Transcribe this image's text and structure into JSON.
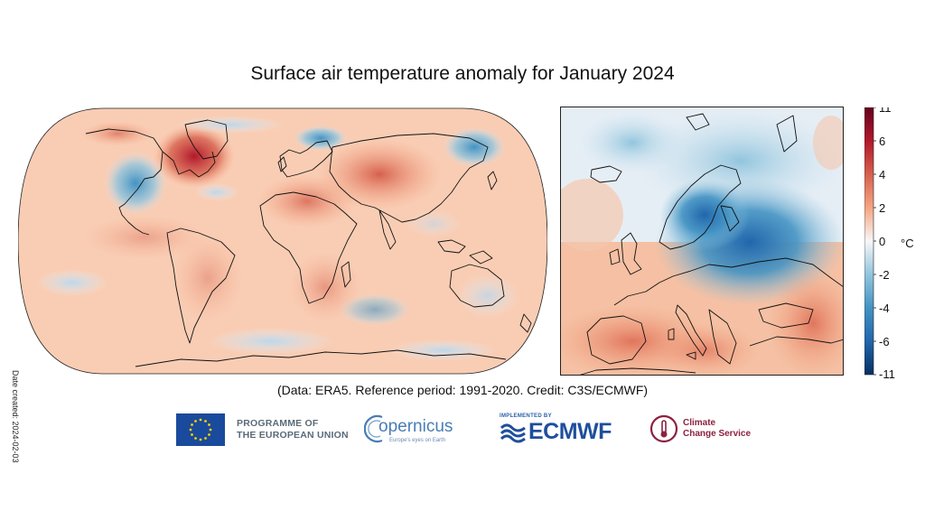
{
  "title": "Surface air temperature anomaly for January 2024",
  "date_created": "Date created: 2024-02-03",
  "credit": "(Data: ERA5.  Reference period: 1991-2020.  Credit: C3S/ECMWF)",
  "colorbar": {
    "unit": "°C",
    "ticks": [
      "11",
      "6",
      "4",
      "2",
      "0",
      "-2",
      "-4",
      "-6",
      "-11"
    ],
    "colors": [
      "#08306b",
      "#2166ac",
      "#4393c3",
      "#92c5de",
      "#f7f7f7",
      "#fddbc7",
      "#f4a582",
      "#d6604d",
      "#b2182b",
      "#8b0000"
    ]
  },
  "logos": {
    "eu_line1": "PROGRAMME OF",
    "eu_line2": "THE EUROPEAN UNION",
    "copernicus_name": "opernicus",
    "copernicus_tagline": "Europe's eyes on Earth",
    "ecmwf_implemented": "IMPLEMENTED BY",
    "ecmwf_name": "ECMWF",
    "c3s_line1": "Climate",
    "c3s_line2": "Change Service"
  }
}
